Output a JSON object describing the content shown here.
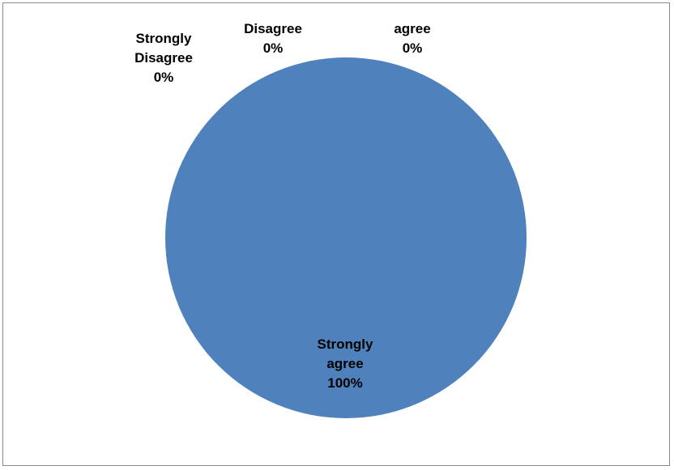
{
  "chart_data": {
    "type": "pie",
    "title": "",
    "slices": [
      {
        "label_lines": [
          "Strongly",
          "Disagree"
        ],
        "percent_label": "0%",
        "value": 0
      },
      {
        "label_lines": [
          "Disagree"
        ],
        "percent_label": "0%",
        "value": 0
      },
      {
        "label_lines": [
          "agree"
        ],
        "percent_label": "0%",
        "value": 0
      },
      {
        "label_lines": [
          "Strongly",
          "agree"
        ],
        "percent_label": "100%",
        "value": 100
      }
    ],
    "legend": "none",
    "colors": {
      "Strongly agree": "#4F81BD",
      "background": "#FFFFFF",
      "border": "#888888"
    }
  }
}
